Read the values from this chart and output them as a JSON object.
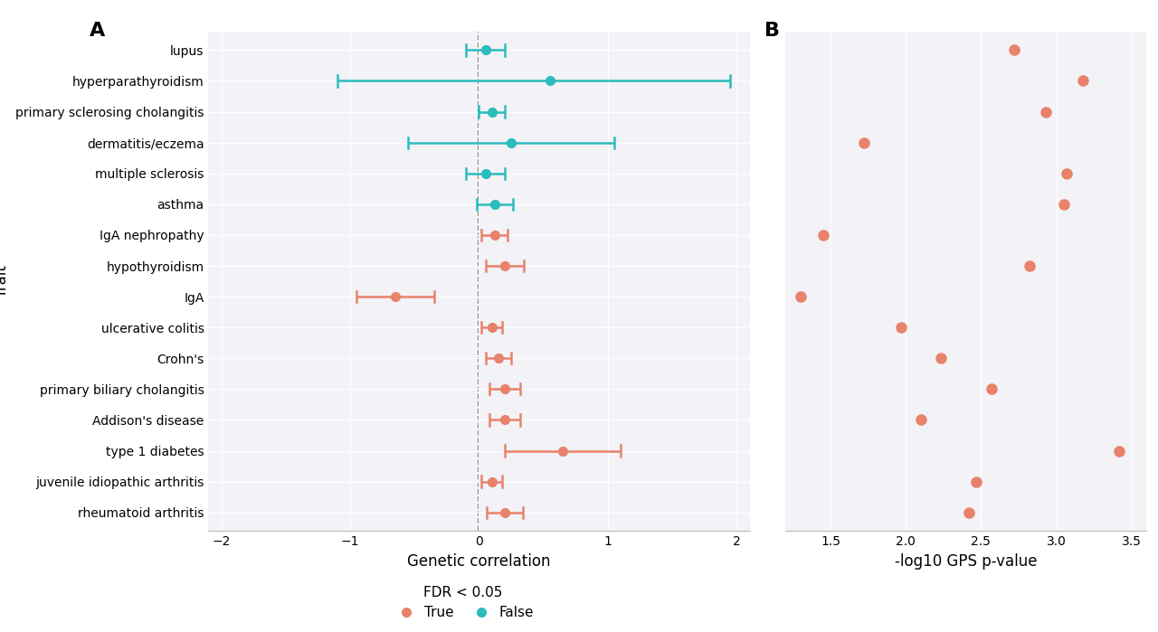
{
  "traits": [
    "lupus",
    "hyperparathyroidism",
    "primary sclerosing cholangitis",
    "dermatitis/eczema",
    "multiple sclerosis",
    "asthma",
    "IgA nephropathy",
    "hypothyroidism",
    "IgA",
    "ulcerative colitis",
    "Crohn's",
    "primary biliary cholangitis",
    "Addison's disease",
    "type 1 diabetes",
    "juvenile idiopathic arthritis",
    "rheumatoid arthritis"
  ],
  "gc_values": [
    0.05,
    0.55,
    0.1,
    0.25,
    0.05,
    0.12,
    0.12,
    0.2,
    -0.65,
    0.1,
    0.15,
    0.2,
    0.2,
    0.65,
    0.1,
    0.2
  ],
  "gc_lo": [
    -0.1,
    -1.1,
    0.0,
    -0.55,
    -0.1,
    -0.02,
    0.02,
    0.05,
    -0.95,
    0.02,
    0.05,
    0.08,
    0.08,
    0.2,
    0.02,
    0.06
  ],
  "gc_hi": [
    0.2,
    1.95,
    0.2,
    1.05,
    0.2,
    0.26,
    0.22,
    0.35,
    -0.35,
    0.18,
    0.25,
    0.32,
    0.32,
    1.1,
    0.18,
    0.34
  ],
  "fdr_significant": [
    false,
    false,
    false,
    false,
    false,
    false,
    true,
    true,
    true,
    true,
    true,
    true,
    true,
    true,
    true,
    true
  ],
  "gps_pvalues": [
    2.72,
    3.18,
    2.93,
    1.72,
    3.07,
    3.05,
    1.45,
    2.82,
    1.3,
    1.97,
    2.23,
    2.57,
    2.1,
    3.42,
    2.47,
    2.42
  ],
  "color_true": "#E8826A",
  "color_false": "#2BBCBC",
  "bg_color": "#F2F2F7",
  "xlim_gc": [
    -2.1,
    2.1
  ],
  "xticks_gc": [
    -2,
    -1,
    0,
    1,
    2
  ],
  "xlim_gps": [
    1.2,
    3.6
  ],
  "xticks_gps": [
    1.5,
    2.0,
    2.5,
    3.0,
    3.5
  ],
  "xlabel_a": "Genetic correlation",
  "xlabel_b": "-log10 GPS p-value",
  "ylabel_a": "Trait",
  "legend_title": "FDR < 0.05",
  "legend_true": "True",
  "legend_false": "False",
  "panel_a": "A",
  "panel_b": "B"
}
